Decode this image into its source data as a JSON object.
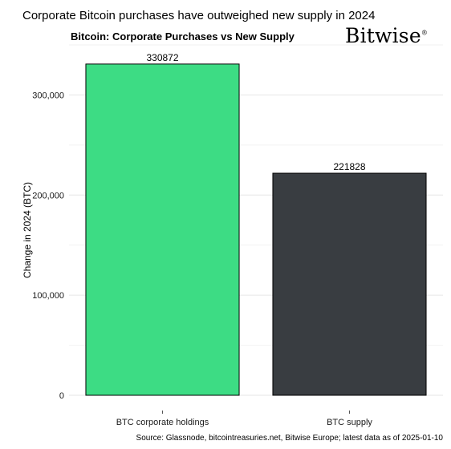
{
  "headline": "Corporate Bitcoin purchases have outweighed new supply in 2024",
  "logo": {
    "text": "Bitwise",
    "mark": "®"
  },
  "source": "Source: Glassnode, bitcointreasuries.net, Bitwise Europe; latest data as of 2025-01-10",
  "chart_data": {
    "type": "bar",
    "title": "Bitcoin: Corporate Purchases vs New Supply",
    "xlabel": "",
    "ylabel": "Change in 2024 (BTC)",
    "categories": [
      "BTC corporate holdings",
      "BTC supply"
    ],
    "values": [
      330872,
      221828
    ],
    "data_labels": [
      "330872",
      "221828"
    ],
    "colors": [
      "#3ddc84",
      "#393d41"
    ],
    "ylim": [
      0,
      350000
    ],
    "yticks": [
      0,
      100000,
      200000,
      300000
    ],
    "ytick_labels": [
      "0",
      "100,000",
      "200,000",
      "300,000"
    ],
    "grid": true,
    "legend": "none"
  }
}
